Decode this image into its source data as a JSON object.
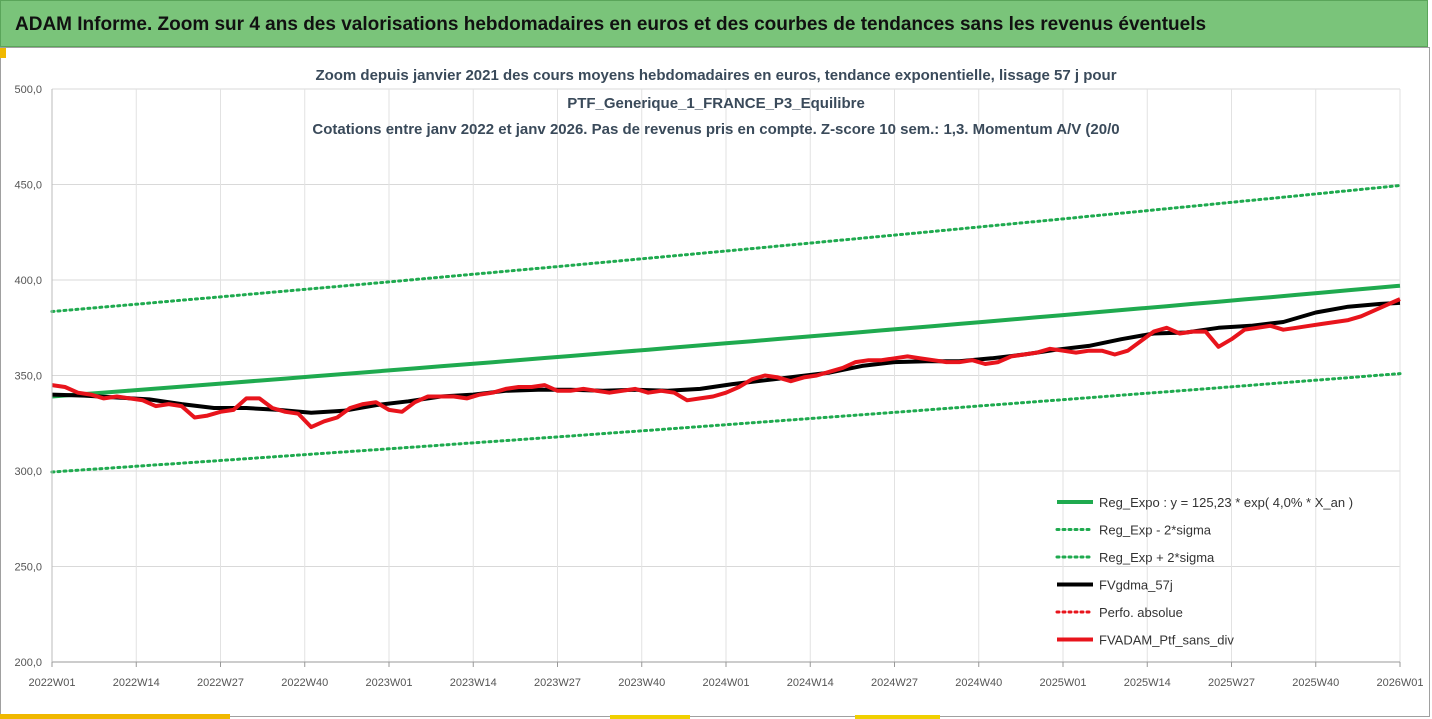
{
  "banner": {
    "title": "ADAM Informe. Zoom sur 4 ans des valorisations hebdomadaires en euros et des courbes de tendances sans les revenus éventuels"
  },
  "colors": {
    "green": "#1faa4f",
    "black": "#000000",
    "red": "#e8141c",
    "banner": "#7ac47a"
  },
  "chart_data": {
    "type": "line",
    "title": [
      "Zoom depuis janvier 2021 des cours moyens hebdomadaires  en euros, tendance exponentielle, lissage 57 j pour",
      "PTF_Generique_1_FRANCE_P3_Equilibre",
      "Cotations entre janv 2022 et janv 2026. Pas de revenus pris en compte. Z-score 10 sem.: 1,3. Momentum A/V (20/0"
    ],
    "xlabel": "",
    "ylabel": "",
    "ylim": [
      200,
      500
    ],
    "yticks": [
      "200,0",
      "250,0",
      "300,0",
      "350,0",
      "400,0",
      "450,0",
      "500,0"
    ],
    "xticks": [
      "2022W01",
      "2022W14",
      "2022W27",
      "2022W40",
      "2023W01",
      "2023W14",
      "2023W27",
      "2023W40",
      "2024W01",
      "2024W14",
      "2024W27",
      "2024W40",
      "2025W01",
      "2025W14",
      "2025W27",
      "2025W40",
      "2026W01"
    ],
    "x_range_weeks": [
      0,
      208
    ],
    "legend": [
      {
        "label": "Reg_Expo : y = 125,23 * exp( 4,0% *  X_an )",
        "color": "#1faa4f",
        "style": "solid",
        "width": 4
      },
      {
        "label": "Reg_Exp - 2*sigma",
        "color": "#1faa4f",
        "style": "dotted",
        "width": 3
      },
      {
        "label": "Reg_Exp + 2*sigma",
        "color": "#1faa4f",
        "style": "dotted",
        "width": 3
      },
      {
        "label": "FVgdma_57j",
        "color": "#000000",
        "style": "solid",
        "width": 4
      },
      {
        "label": "Perfo. absolue",
        "color": "#e8141c",
        "style": "dotted",
        "width": 3
      },
      {
        "label": "FVADAM_Ptf_sans_div",
        "color": "#e8141c",
        "style": "solid",
        "width": 4
      }
    ],
    "legend_position": "bottom-right",
    "series": [
      {
        "name": "Reg_Expo : y = 125,23 * exp( 4,0% *  X_an )",
        "x": [
          0,
          208
        ],
        "y": [
          339,
          397
        ],
        "kind": "exponential"
      },
      {
        "name": "Reg_Exp - 2*sigma",
        "x": [
          0,
          208
        ],
        "y": [
          299.5,
          351
        ],
        "kind": "exponential"
      },
      {
        "name": "Reg_Exp + 2*sigma",
        "x": [
          0,
          208
        ],
        "y": [
          383.5,
          449.5
        ],
        "kind": "exponential"
      },
      {
        "name": "FVgdma_57j",
        "x": [
          0,
          5,
          10,
          15,
          20,
          25,
          30,
          35,
          40,
          45,
          50,
          55,
          60,
          65,
          70,
          75,
          80,
          85,
          90,
          95,
          100,
          105,
          110,
          115,
          120,
          125,
          130,
          135,
          140,
          145,
          150,
          155,
          160,
          165,
          170,
          175,
          180,
          185,
          190,
          195,
          200,
          205,
          208
        ],
        "y": [
          340,
          339.5,
          338.5,
          337.5,
          335,
          333,
          333,
          332,
          330.5,
          331.5,
          334.5,
          336.5,
          339,
          340,
          342,
          342.5,
          342.5,
          342,
          342.5,
          342,
          343,
          345.5,
          347.5,
          349.5,
          351.5,
          355,
          357,
          357.5,
          357.5,
          359,
          361,
          363.5,
          365.5,
          369,
          372,
          372.5,
          375,
          376,
          378,
          383,
          386,
          387.5,
          388
        ]
      },
      {
        "name": "FVADAM_Ptf_sans_div",
        "x": [
          0,
          2,
          4,
          6,
          8,
          10,
          12,
          14,
          16,
          18,
          20,
          22,
          24,
          26,
          28,
          30,
          32,
          34,
          36,
          38,
          40,
          42,
          44,
          46,
          48,
          50,
          52,
          54,
          56,
          58,
          60,
          62,
          64,
          66,
          68,
          70,
          72,
          74,
          76,
          78,
          80,
          82,
          84,
          86,
          88,
          90,
          92,
          94,
          96,
          98,
          100,
          102,
          104,
          106,
          108,
          110,
          112,
          114,
          116,
          118,
          120,
          122,
          124,
          126,
          128,
          130,
          132,
          134,
          136,
          138,
          140,
          142,
          144,
          146,
          148,
          150,
          152,
          154,
          156,
          158,
          160,
          162,
          164,
          166,
          168,
          170,
          172,
          174,
          176,
          178,
          180,
          182,
          184,
          186,
          188,
          190,
          192,
          194,
          196,
          198,
          200,
          202,
          204,
          206,
          208
        ],
        "y": [
          345,
          344,
          341,
          340,
          338,
          339,
          338,
          337,
          334,
          335,
          334,
          328,
          329,
          331,
          332,
          338,
          338,
          333,
          331,
          330,
          323,
          326,
          328,
          333,
          335,
          336,
          332,
          331,
          336,
          339,
          339,
          339,
          338,
          340,
          341,
          343,
          344,
          344,
          345,
          342,
          342,
          343,
          342,
          341,
          342,
          343,
          341,
          342,
          341,
          337,
          338,
          339,
          341,
          344,
          348,
          350,
          349,
          347,
          349,
          350,
          352,
          354,
          357,
          358,
          358,
          359,
          360,
          359,
          358,
          357,
          357,
          358,
          356,
          357,
          360,
          361,
          362,
          364,
          363,
          362,
          363,
          363,
          361,
          363,
          368,
          373,
          375,
          372,
          373,
          373,
          365,
          369,
          374,
          375,
          376,
          374,
          375,
          376,
          377,
          378,
          379,
          381,
          384,
          387,
          390
        ]
      }
    ]
  }
}
